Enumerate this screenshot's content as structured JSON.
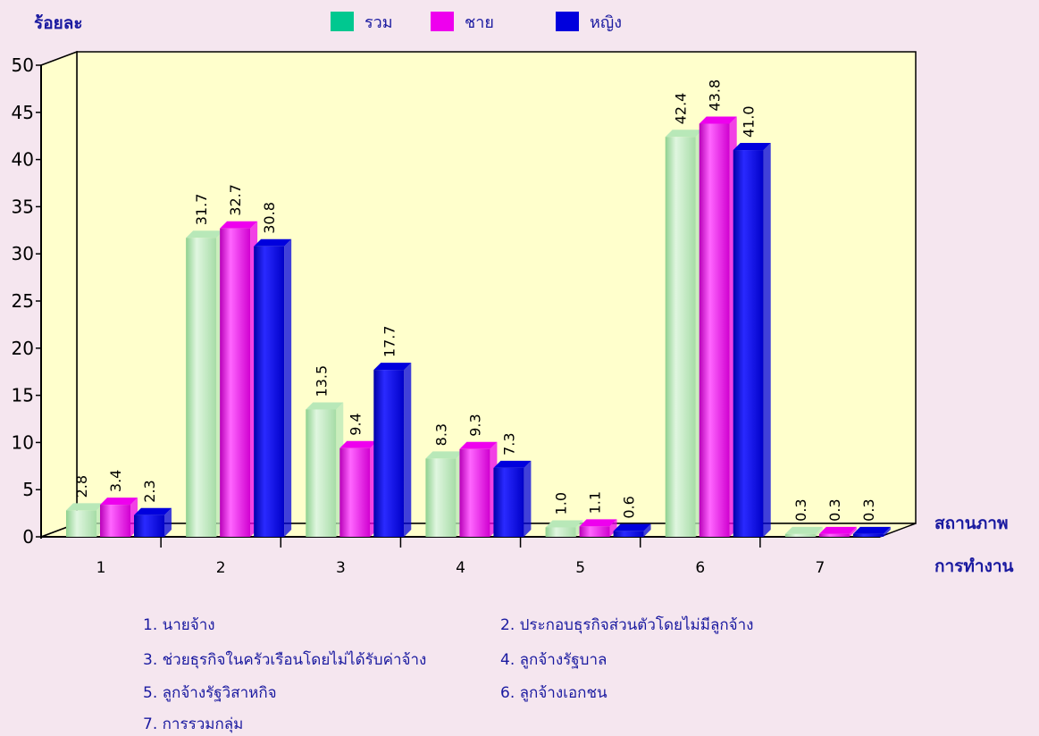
{
  "chart_data": {
    "type": "bar",
    "ylabel": "ร้อยละ",
    "xlabel_line1": "สถานภาพ",
    "xlabel_line2": "การทำงาน",
    "ylim": [
      0,
      50
    ],
    "yticks": [
      "0",
      "5",
      "10",
      "15",
      "20",
      "25",
      "30",
      "35",
      "40",
      "45",
      "50"
    ],
    "categories": [
      "1",
      "2",
      "3",
      "4",
      "5",
      "6",
      "7"
    ],
    "series": [
      {
        "name": "รวม",
        "values": [
          2.8,
          31.7,
          13.5,
          8.3,
          1.0,
          42.4,
          0.3
        ],
        "labels": [
          "2.8",
          "31.7",
          "13.5",
          "8.3",
          "1.0",
          "42.4",
          "0.3"
        ]
      },
      {
        "name": "ชาย",
        "values": [
          3.4,
          32.7,
          9.4,
          9.3,
          1.1,
          43.8,
          0.3
        ],
        "labels": [
          "3.4",
          "32.7",
          "9.4",
          "9.3",
          "1.1",
          "43.8",
          "0.3"
        ]
      },
      {
        "name": "หญิง",
        "values": [
          2.3,
          30.8,
          17.7,
          7.3,
          0.6,
          41.0,
          0.3
        ],
        "labels": [
          "2.3",
          "30.8",
          "17.7",
          "7.3",
          "0.6",
          "41.0",
          "0.3"
        ]
      }
    ],
    "grid": false,
    "legend": "top-center"
  },
  "colors": {
    "background": "#f5e6ef",
    "plot": "#ffffcc",
    "series": [
      "#b8e8b8",
      "#ee00ee",
      "#0000dd"
    ],
    "legend_swatch": [
      "#00c890",
      "#ee00ee",
      "#0000dd"
    ],
    "title": "#1a1aa0"
  },
  "notes": [
    "1.  นายจ้าง",
    "2.  ประกอบธุรกิจส่วนตัวโดยไม่มีลูกจ้าง",
    "3.  ช่วยธุรกิจในครัวเรือนโดยไม่ได้รับค่าจ้าง",
    "4.   ลูกจ้างรัฐบาล",
    "5.   ลูกจ้างรัฐวิสาหกิจ",
    "6.  ลูกจ้างเอกชน",
    "7.   การรวมกลุ่ม"
  ]
}
